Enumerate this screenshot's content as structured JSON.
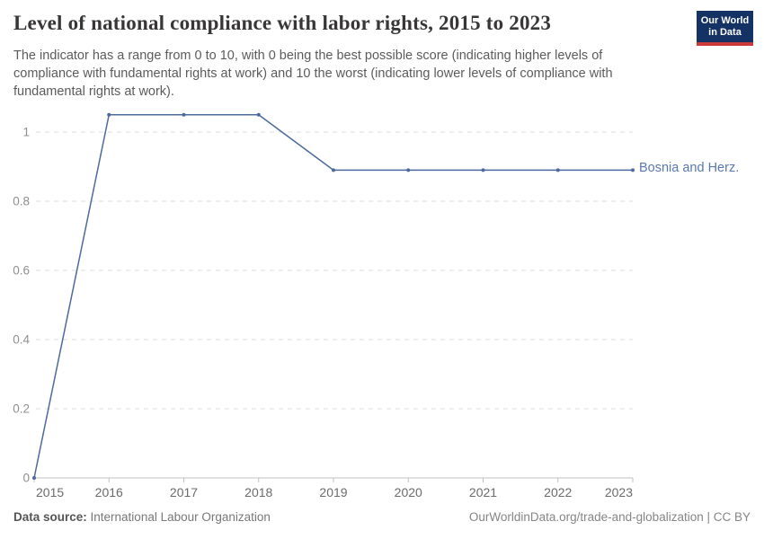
{
  "header": {
    "title": "Level of national compliance with labor rights, 2015 to 2023",
    "subtitle": "The indicator has a range from 0 to 10, with 0 being the best possible score (indicating higher levels of compliance with fundamental rights at work) and 10 the worst (indicating lower levels of compliance with fundamental rights at work).",
    "logo": {
      "line1": "Our World",
      "line2": "in Data"
    }
  },
  "chart_data": {
    "type": "line",
    "title": "Level of national compliance with labor rights, 2015 to 2023",
    "x": [
      2015,
      2016,
      2017,
      2018,
      2019,
      2020,
      2021,
      2022,
      2023
    ],
    "series": [
      {
        "name": "Bosnia and Herz.",
        "values": [
          0,
          1.05,
          1.05,
          1.05,
          0.89,
          0.89,
          0.89,
          0.89,
          0.89
        ]
      }
    ],
    "yticks": [
      0,
      0.2,
      0.4,
      0.6,
      0.8,
      1
    ],
    "ytick_labels": [
      "0",
      "0.2",
      "0.4",
      "0.6",
      "0.8",
      "1"
    ],
    "ylim": [
      0,
      1.05
    ],
    "xlim": [
      2015,
      2023
    ],
    "xlabel": "",
    "ylabel": "",
    "grid": "horizontal-dashed",
    "legend_position": "right-of-line-end",
    "markers": true
  },
  "footer": {
    "data_source_label": "Data source:",
    "data_source_value": " International Labour Organization",
    "credit": "OurWorldinData.org/trade-and-globalization | CC BY"
  },
  "colors": {
    "line": "#4c6a9c",
    "series_label": "#5878b0",
    "grid": "#dcdcdc",
    "axis": "#c0c0c0",
    "y_tick_label": "#8f8f8f",
    "x_tick_label": "#6b6b6b",
    "logo_bg": "#143264",
    "logo_accent": "#cb3a38"
  }
}
